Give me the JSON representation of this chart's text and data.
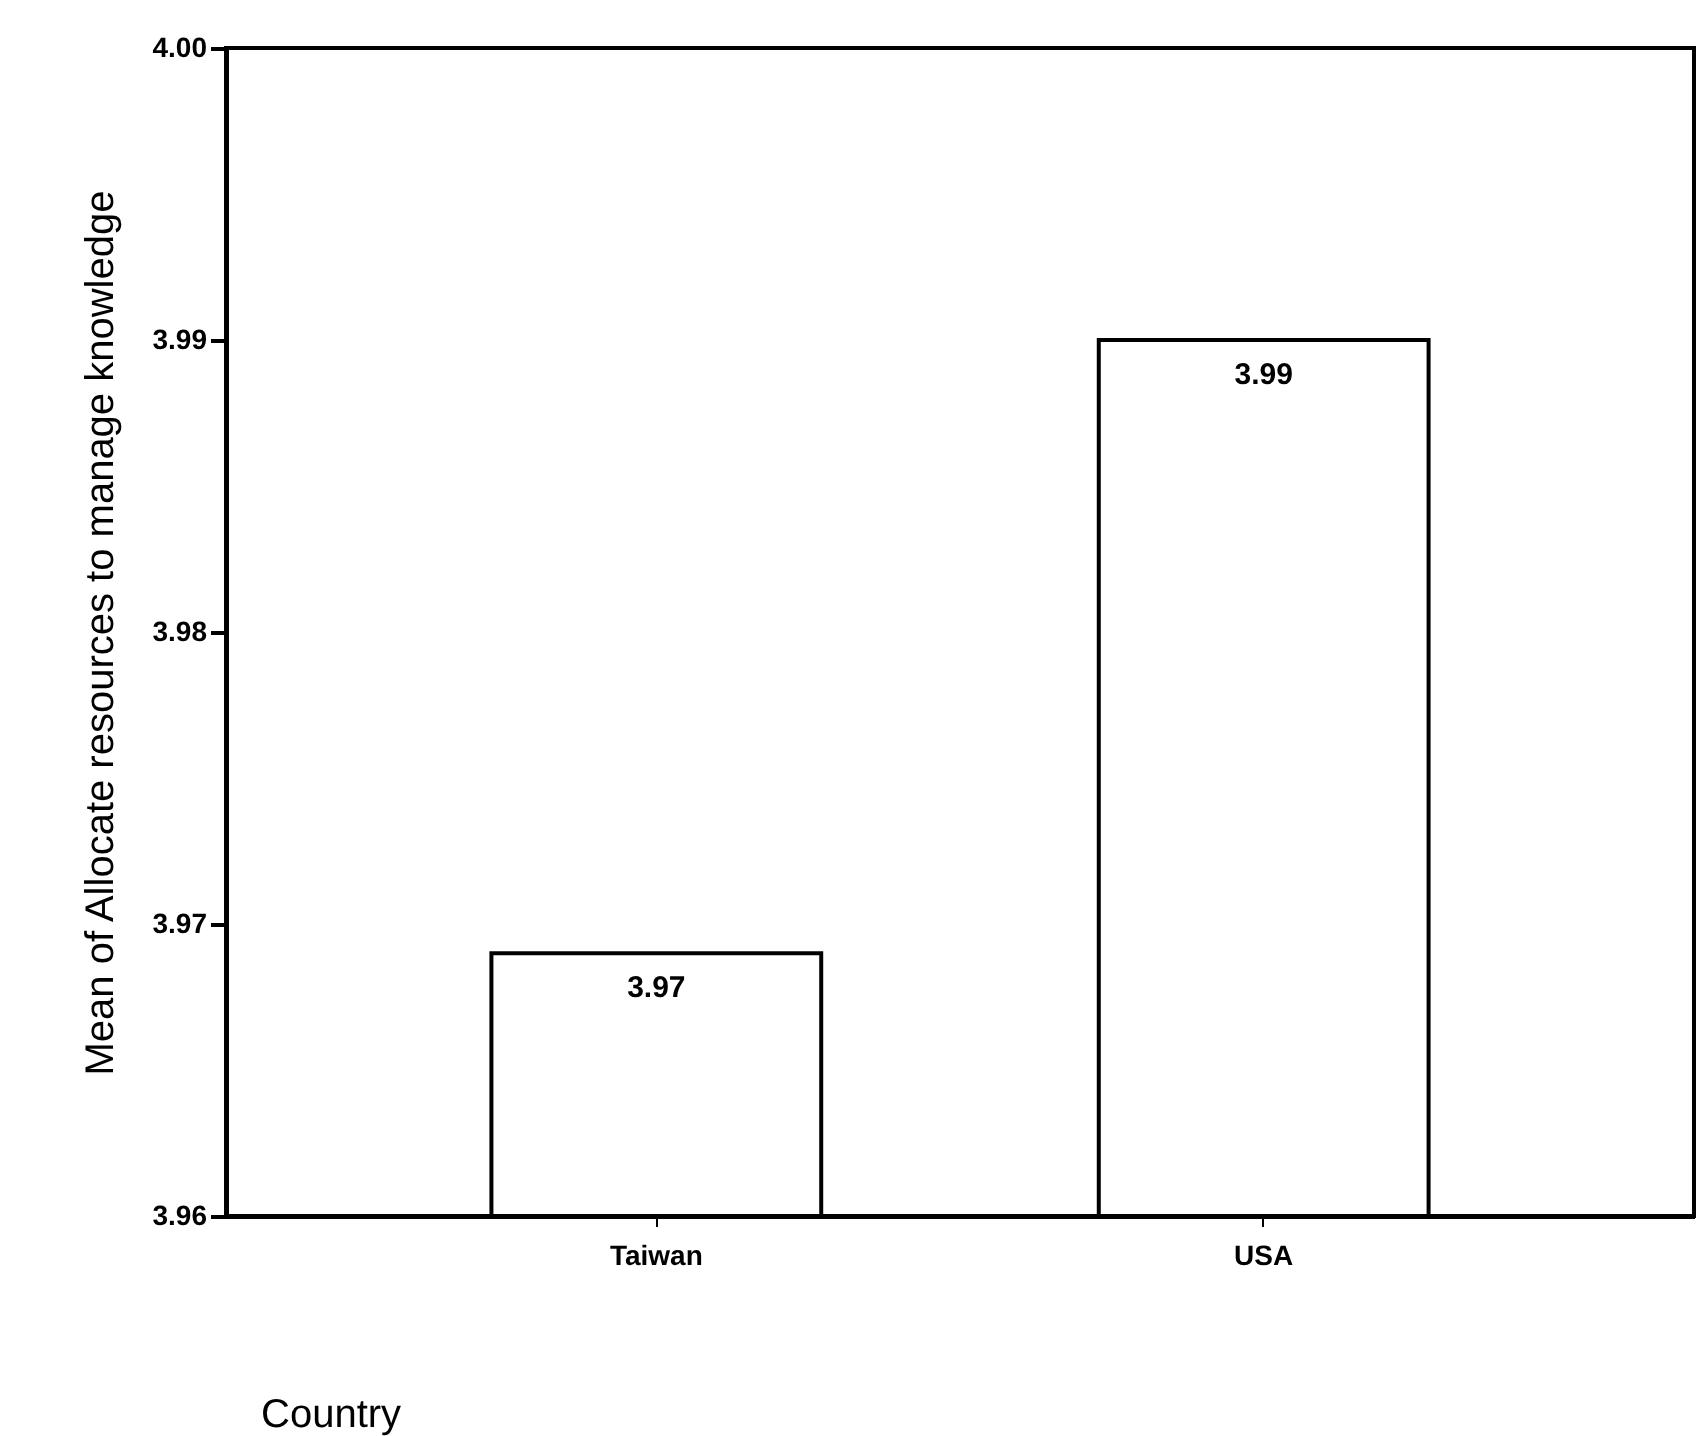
{
  "chart_data": {
    "type": "bar",
    "xlabel": "Country",
    "ylabel": "Mean of Allocate resources to manage knowledge",
    "categories": [
      "Taiwan",
      "USA"
    ],
    "series": [
      {
        "color": "#ffffff",
        "values": [
          3.969,
          3.99
        ],
        "value_labels": [
          "3.97",
          "3.99"
        ]
      }
    ],
    "ylim": [
      3.96,
      4.0
    ],
    "yticks": [
      3.96,
      3.97,
      3.98,
      3.99,
      {
        "value": 4.0,
        "label": "4.00"
      }
    ],
    "grid": false
  }
}
